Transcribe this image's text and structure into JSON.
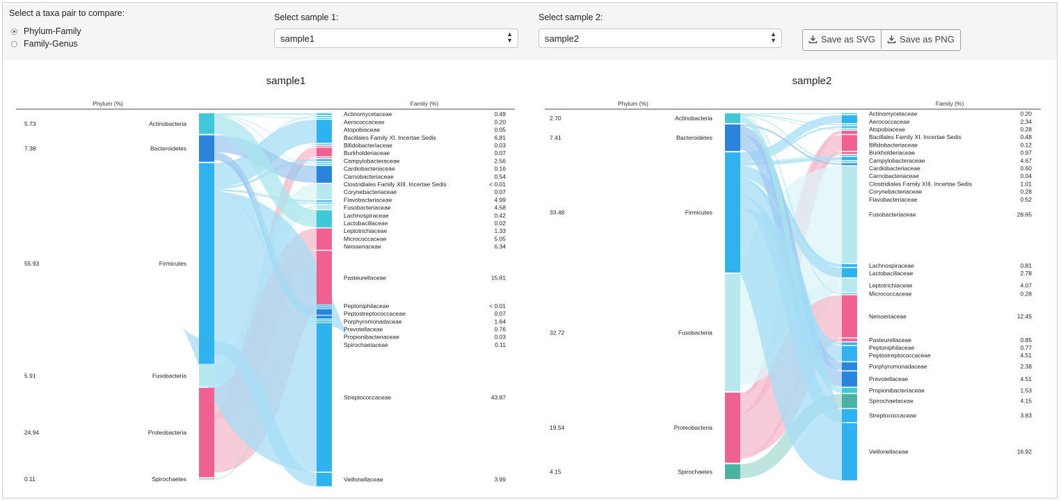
{
  "controls": {
    "taxa_prompt": "Select a taxa pair to compare:",
    "taxa_options": [
      {
        "label": "Phylum-Family",
        "selected": true
      },
      {
        "label": "Family-Genus",
        "selected": false
      }
    ],
    "sample1_label": "Select sample 1:",
    "sample1_value": "sample1",
    "sample2_label": "Select sample 2:",
    "sample2_value": "sample2",
    "save_svg_label": "Save as SVG",
    "save_png_label": "Save as PNG"
  },
  "colors": {
    "Actinobacteria": "#3ec8d8",
    "Bacteroidetes": "#2a84dc",
    "Firmicutes": "#2fb2ee",
    "Fusobacteria": "#b7e7ef",
    "Proteobacteria": "#ee6190",
    "Spirochaetes": "#4cb3a4",
    "link_Actinobacteria": "#a9e6ee",
    "link_Bacteroidetes": "#9fc9f2",
    "link_Firmicutes": "#a6ddf6",
    "link_Fusobacteria": "#dcf4f7",
    "link_Proteobacteria": "#f6b9cb",
    "link_Spirochaetes": "#a7dbd3"
  },
  "panels": [
    {
      "title": "sample1",
      "left_header": "Phylum (%)",
      "right_header": "Family (%)",
      "phyla": [
        {
          "name": "Actinobacteria",
          "value": "5.73"
        },
        {
          "name": "Bacteroidetes",
          "value": "7.38"
        },
        {
          "name": "Firmicutes",
          "value": "55.93"
        },
        {
          "name": "Fusobacteria",
          "value": "5.91"
        },
        {
          "name": "Proteobacteria",
          "value": "24.94"
        },
        {
          "name": "Spirochaetes",
          "value": "0.11"
        }
      ],
      "families": [
        {
          "name": "Actinomycetaceae",
          "value": "0.49",
          "phylum": "Actinobacteria"
        },
        {
          "name": "Aerococcaceae",
          "value": "0.20",
          "phylum": "Firmicutes"
        },
        {
          "name": "Atopobiaceae",
          "value": "0.05",
          "phylum": "Actinobacteria"
        },
        {
          "name": "Bacillales Family XI. Incertae Sedis",
          "value": "6.81",
          "phylum": "Firmicutes"
        },
        {
          "name": "Bifidobacteriaceae",
          "value": "0.03",
          "phylum": "Actinobacteria"
        },
        {
          "name": "Burkholderiaceae",
          "value": "0.07",
          "phylum": "Proteobacteria"
        },
        {
          "name": "Campylobacteraceae",
          "value": "2.56",
          "phylum": "Proteobacteria"
        },
        {
          "name": "Cardiobacteriaceae",
          "value": "0.16",
          "phylum": "Proteobacteria"
        },
        {
          "name": "Carnobacteriaceae",
          "value": "0.54",
          "phylum": "Firmicutes"
        },
        {
          "name": "Clostridiales Family XIII. Incertae Sedis",
          "value": "< 0.01",
          "phylum": "Firmicutes"
        },
        {
          "name": "Corynebacteriaceae",
          "value": "0.07",
          "phylum": "Actinobacteria"
        },
        {
          "name": "Flavobacteriaceae",
          "value": "4.99",
          "phylum": "Bacteroidetes"
        },
        {
          "name": "Fusobacteriaceae",
          "value": "4.58",
          "phylum": "Fusobacteria"
        },
        {
          "name": "Lachnospiraceae",
          "value": "0.42",
          "phylum": "Firmicutes"
        },
        {
          "name": "Lactobacillaceae",
          "value": "0.02",
          "phylum": "Firmicutes"
        },
        {
          "name": "Leptotrichiaceae",
          "value": "1.33",
          "phylum": "Fusobacteria"
        },
        {
          "name": "Micrococcaceae",
          "value": "5.05",
          "phylum": "Actinobacteria"
        },
        {
          "name": "Neisseriaceae",
          "value": "6.34",
          "phylum": "Proteobacteria"
        },
        {
          "name": "Pasteurellaceae",
          "value": "15.81",
          "phylum": "Proteobacteria"
        },
        {
          "name": "Peptoniphilaceae",
          "value": "< 0.01",
          "phylum": "Firmicutes"
        },
        {
          "name": "Peptostreptococcaceae",
          "value": "0.07",
          "phylum": "Firmicutes"
        },
        {
          "name": "Porphyromonadaceae",
          "value": "1.64",
          "phylum": "Bacteroidetes"
        },
        {
          "name": "Prevotellaceae",
          "value": "0.76",
          "phylum": "Bacteroidetes"
        },
        {
          "name": "Propionibacteriaceae",
          "value": "0.03",
          "phylum": "Actinobacteria"
        },
        {
          "name": "Spirochaetaceae",
          "value": "0.11",
          "phylum": "Spirochaetes"
        },
        {
          "name": "Streptococcaceae",
          "value": "43.87",
          "phylum": "Firmicutes"
        },
        {
          "name": "Veillonellaceae",
          "value": "3.99",
          "phylum": "Firmicutes"
        }
      ]
    },
    {
      "title": "sample2",
      "left_header": "Phylum (%)",
      "right_header": "Family (%)",
      "phyla": [
        {
          "name": "Actinobacteria",
          "value": "2.70"
        },
        {
          "name": "Bacteroidetes",
          "value": "7.41"
        },
        {
          "name": "Firmicutes",
          "value": "33.48"
        },
        {
          "name": "Fusobacteria",
          "value": "32.72"
        },
        {
          "name": "Proteobacteria",
          "value": "19.54"
        },
        {
          "name": "Spirochaetes",
          "value": "4.15"
        }
      ],
      "families": [
        {
          "name": "Actinomycetaceae",
          "value": "0.20",
          "phylum": "Actinobacteria"
        },
        {
          "name": "Aerococcaceae",
          "value": "2.34",
          "phylum": "Firmicutes"
        },
        {
          "name": "Atopobiaceae",
          "value": "0.28",
          "phylum": "Actinobacteria"
        },
        {
          "name": "Bacillales Family XI. Incertae Sedis",
          "value": "0.48",
          "phylum": "Firmicutes"
        },
        {
          "name": "Bifidobacteriaceae",
          "value": "0.12",
          "phylum": "Actinobacteria"
        },
        {
          "name": "Burkholderiaceae",
          "value": "0.97",
          "phylum": "Proteobacteria"
        },
        {
          "name": "Campylobacteraceae",
          "value": "4.67",
          "phylum": "Proteobacteria"
        },
        {
          "name": "Cardiobacteriaceae",
          "value": "0.60",
          "phylum": "Proteobacteria"
        },
        {
          "name": "Carnobacteriaceae",
          "value": "0.04",
          "phylum": "Firmicutes"
        },
        {
          "name": "Clostridiales Family XIII. Incertae Sedis",
          "value": "1.01",
          "phylum": "Firmicutes"
        },
        {
          "name": "Corynebacteriaceae",
          "value": "0.28",
          "phylum": "Actinobacteria"
        },
        {
          "name": "Flavobacteriaceae",
          "value": "0.52",
          "phylum": "Bacteroidetes"
        },
        {
          "name": "Fusobacteriaceae",
          "value": "28.65",
          "phylum": "Fusobacteria"
        },
        {
          "name": "Lachnospiraceae",
          "value": "0.81",
          "phylum": "Firmicutes"
        },
        {
          "name": "Lactobacillaceae",
          "value": "2.78",
          "phylum": "Firmicutes"
        },
        {
          "name": "Leptotrichiaceae",
          "value": "4.07",
          "phylum": "Fusobacteria"
        },
        {
          "name": "Micrococcaceae",
          "value": "0.28",
          "phylum": "Actinobacteria"
        },
        {
          "name": "Neisseriaceae",
          "value": "12.45",
          "phylum": "Proteobacteria"
        },
        {
          "name": "Pasteurellaceae",
          "value": "0.85",
          "phylum": "Proteobacteria"
        },
        {
          "name": "Peptoniphilaceae",
          "value": "0.77",
          "phylum": "Firmicutes"
        },
        {
          "name": "Peptostreptococcaceae",
          "value": "4.51",
          "phylum": "Firmicutes"
        },
        {
          "name": "Porphyromonadaceae",
          "value": "2.38",
          "phylum": "Bacteroidetes"
        },
        {
          "name": "Prevotellaceae",
          "value": "4.51",
          "phylum": "Bacteroidetes"
        },
        {
          "name": "Propionibacteriaceae",
          "value": "1.53",
          "phylum": "Actinobacteria"
        },
        {
          "name": "Spirochaetaceae",
          "value": "4.15",
          "phylum": "Spirochaetes"
        },
        {
          "name": "Streptococcaceae",
          "value": "3.83",
          "phylum": "Firmicutes"
        },
        {
          "name": "Veillonellaceae",
          "value": "16.92",
          "phylum": "Firmicutes"
        }
      ]
    }
  ]
}
